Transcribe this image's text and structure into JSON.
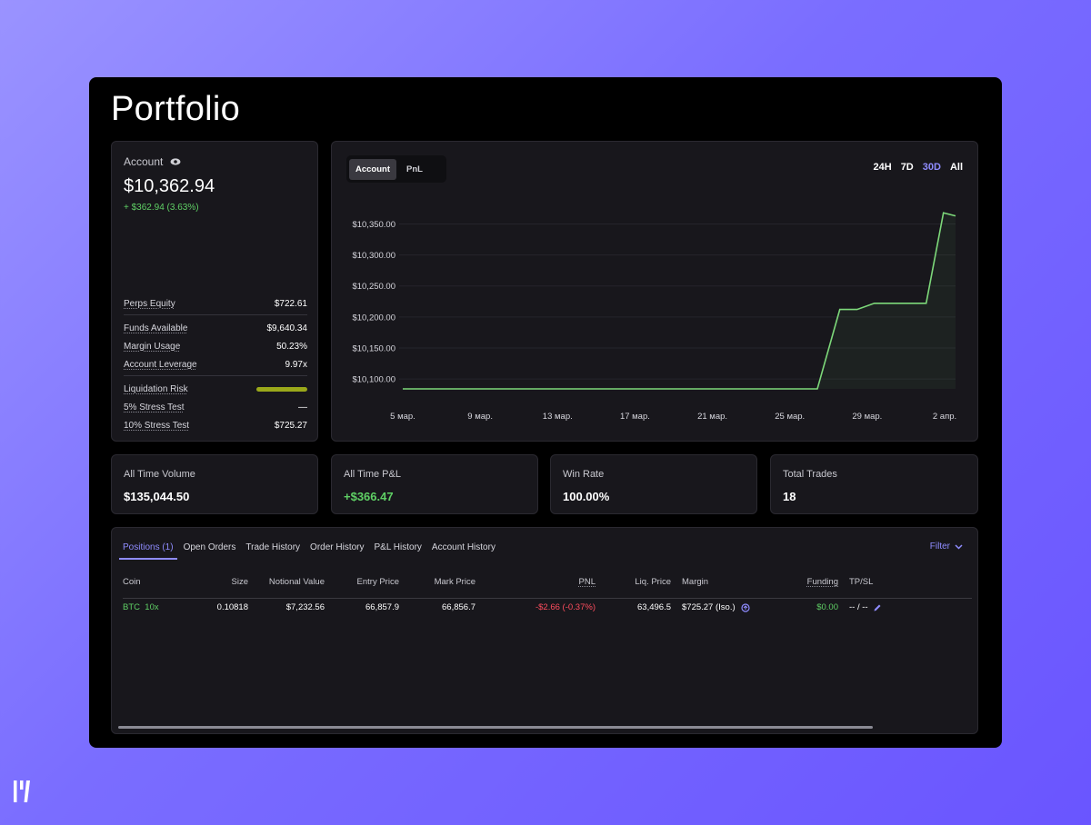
{
  "page": {
    "title": "Portfolio"
  },
  "account": {
    "label": "Account",
    "value": "$10,362.94",
    "change": "+ $362.94 (3.63%)",
    "metrics": [
      {
        "label": "Perps Equity",
        "value": "$722.61"
      },
      {
        "label": "Funds Available",
        "value": "$9,640.34"
      },
      {
        "label": "Margin Usage",
        "value": "50.23%"
      },
      {
        "label": "Account Leverage",
        "value": "9.97x"
      },
      {
        "label": "Liquidation Risk",
        "value": ""
      },
      {
        "label": "5% Stress Test",
        "value": "—"
      },
      {
        "label": "10% Stress Test",
        "value": "$725.27"
      }
    ],
    "liquidation_risk_level": 0.95,
    "risk_color": "#9aa81a"
  },
  "chart_panel": {
    "toggle": [
      "Account",
      "PnL"
    ],
    "toggle_selected": "Account",
    "ranges": [
      "24H",
      "7D",
      "30D",
      "All"
    ],
    "range_selected": "30D"
  },
  "chart_data": {
    "type": "area",
    "title": "",
    "xlabel": "",
    "ylabel": "",
    "x_ticks": [
      "5 мар.",
      "9 мар.",
      "13 мар.",
      "17 мар.",
      "21 мар.",
      "25 мар.",
      "29 мар.",
      "2 апр."
    ],
    "y_ticks": [
      "$10,350.00",
      "$10,300.00",
      "$10,250.00",
      "$10,200.00",
      "$10,150.00",
      "$10,100.00"
    ],
    "y_tick_values": [
      10350,
      10300,
      10250,
      10200,
      10150,
      10100
    ],
    "ylim": [
      10084,
      10380
    ],
    "xlim": [
      4,
      36
    ],
    "series": [
      {
        "x": [
          4,
          10,
          16,
          22,
          28,
          29.3,
          30.3,
          31.3,
          32.3,
          33.3,
          34.3,
          35.3,
          36
        ],
        "values": [
          10084,
          10084,
          10084,
          10084,
          10084,
          10212,
          10212,
          10222,
          10222,
          10222,
          10222,
          10368,
          10363
        ]
      }
    ],
    "grid": true,
    "line_color": "#7dd87a"
  },
  "stats": [
    {
      "label": "All Time Volume",
      "value": "$135,044.50"
    },
    {
      "label": "All Time P&L",
      "value": "+$366.47"
    },
    {
      "label": "Win Rate",
      "value": "100.00%"
    },
    {
      "label": "Total Trades",
      "value": "18"
    }
  ],
  "positions": {
    "tabs": [
      "Positions (1)",
      "Open Orders",
      "Trade History",
      "Order History",
      "P&L History",
      "Account History"
    ],
    "filter_label": "Filter",
    "columns": [
      "Coin",
      "Size",
      "Notional Value",
      "Entry Price",
      "Mark Price",
      "PNL",
      "Liq. Price",
      "Margin",
      "Funding",
      "TP/SL"
    ],
    "rows": [
      {
        "coin": "BTC",
        "leverage": "10x",
        "size": "0.10818",
        "notional": "$7,232.56",
        "entry": "66,857.9",
        "mark": "66,856.7",
        "pnl": "-$2.66 (-0.37%)",
        "liq": "63,496.5",
        "margin": "$725.27 (Iso.)",
        "funding": "$0.00",
        "tpsl": "-- / --"
      }
    ]
  }
}
